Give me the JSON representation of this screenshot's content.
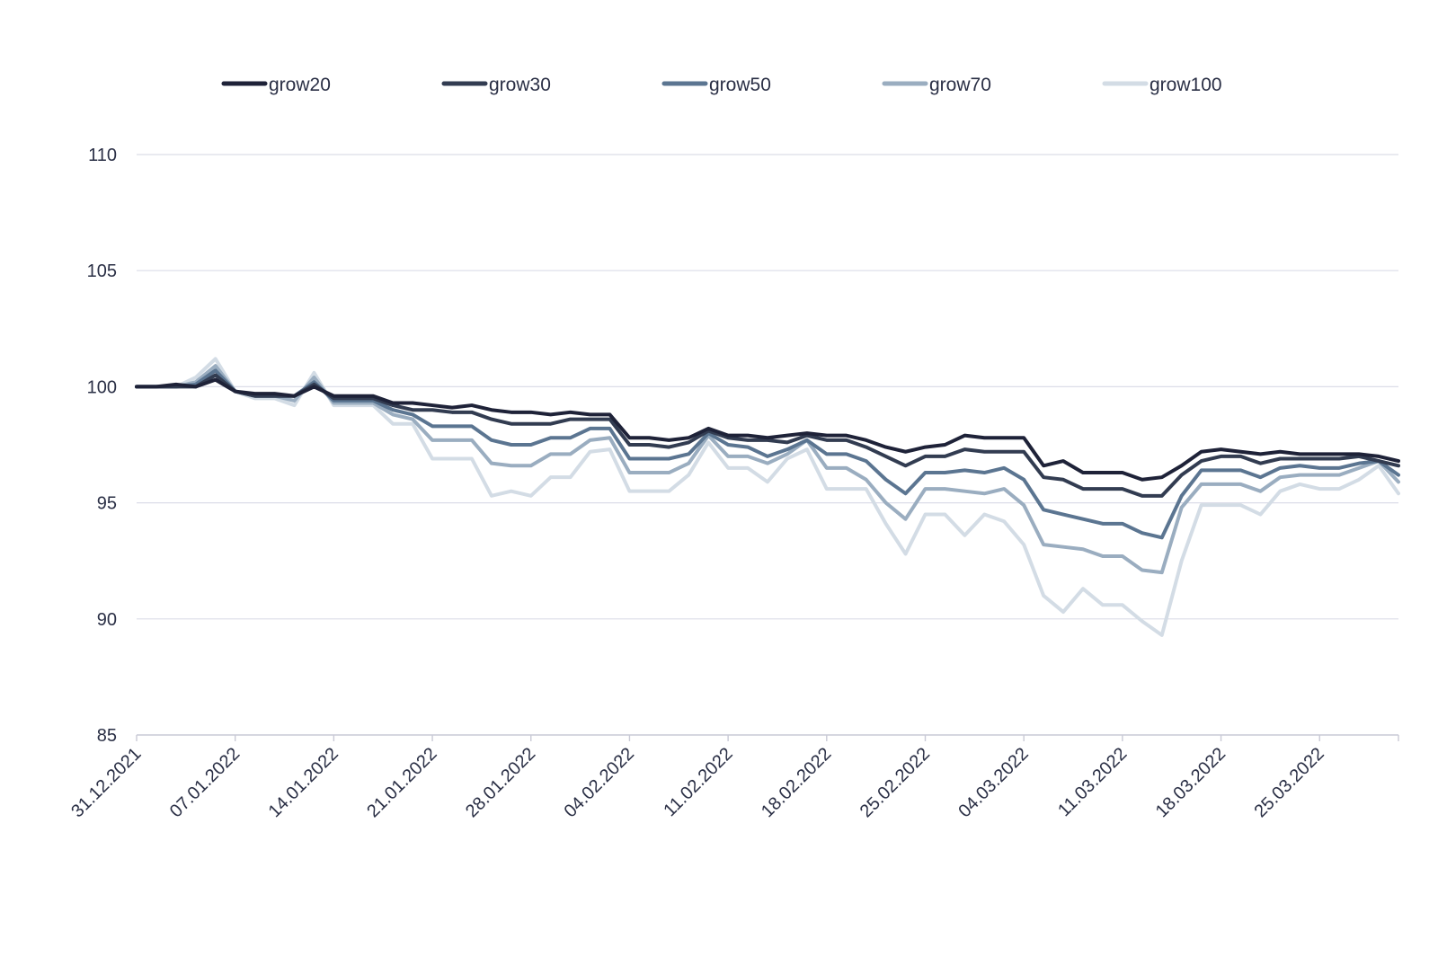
{
  "chart_data": {
    "type": "line",
    "title": "",
    "xlabel": "",
    "ylabel": "",
    "ylim": [
      85,
      110
    ],
    "yticks": [
      85,
      90,
      95,
      100,
      105,
      110
    ],
    "grid": true,
    "legend_position": "top",
    "x_tick_labels": [
      "31.12.2021",
      "07.01.2022",
      "14.01.2022",
      "21.01.2022",
      "28.01.2022",
      "04.02.2022",
      "11.02.2022",
      "18.02.2022",
      "25.02.2022",
      "04.03.2022",
      "11.03.2022",
      "18.03.2022",
      "25.03.2022"
    ],
    "x": [
      "31.12.2021",
      "03.01.2022",
      "04.01.2022",
      "05.01.2022",
      "06.01.2022",
      "07.01.2022",
      "10.01.2022",
      "11.01.2022",
      "12.01.2022",
      "13.01.2022",
      "14.01.2022",
      "17.01.2022",
      "18.01.2022",
      "19.01.2022",
      "20.01.2022",
      "21.01.2022",
      "24.01.2022",
      "25.01.2022",
      "26.01.2022",
      "27.01.2022",
      "28.01.2022",
      "31.01.2022",
      "01.02.2022",
      "02.02.2022",
      "03.02.2022",
      "04.02.2022",
      "07.02.2022",
      "08.02.2022",
      "09.02.2022",
      "10.02.2022",
      "11.02.2022",
      "14.02.2022",
      "15.02.2022",
      "16.02.2022",
      "17.02.2022",
      "18.02.2022",
      "21.02.2022",
      "22.02.2022",
      "23.02.2022",
      "24.02.2022",
      "25.02.2022",
      "28.02.2022",
      "01.03.2022",
      "02.03.2022",
      "03.03.2022",
      "04.03.2022",
      "07.03.2022",
      "08.03.2022",
      "09.03.2022",
      "10.03.2022",
      "11.03.2022",
      "14.03.2022",
      "15.03.2022",
      "16.03.2022",
      "17.03.2022",
      "18.03.2022",
      "21.03.2022",
      "22.03.2022",
      "23.03.2022",
      "24.03.2022",
      "25.03.2022",
      "28.03.2022",
      "29.03.2022",
      "30.03.2022",
      "31.03.2022"
    ],
    "series": [
      {
        "name": "grow20",
        "color": "#1e2238",
        "values": [
          100.0,
          100.0,
          100.1,
          100.0,
          100.3,
          99.8,
          99.7,
          99.7,
          99.6,
          100.0,
          99.6,
          99.6,
          99.6,
          99.3,
          99.3,
          99.2,
          99.1,
          99.2,
          99.0,
          98.9,
          98.9,
          98.8,
          98.9,
          98.8,
          98.8,
          97.8,
          97.8,
          97.7,
          97.8,
          98.2,
          97.9,
          97.9,
          97.8,
          97.9,
          98.0,
          97.9,
          97.9,
          97.7,
          97.4,
          97.2,
          97.4,
          97.5,
          97.9,
          97.8,
          97.8,
          97.8,
          96.6,
          96.8,
          96.3,
          96.3,
          96.3,
          96.0,
          96.1,
          96.6,
          97.2,
          97.3,
          97.2,
          97.1,
          97.2,
          97.1,
          97.1,
          97.1,
          97.1,
          97.0,
          96.8
        ]
      },
      {
        "name": "grow30",
        "color": "#323c51",
        "values": [
          100.0,
          100.0,
          100.0,
          100.0,
          100.5,
          99.8,
          99.6,
          99.6,
          99.6,
          100.1,
          99.5,
          99.5,
          99.5,
          99.2,
          99.0,
          99.0,
          98.9,
          98.9,
          98.6,
          98.4,
          98.4,
          98.4,
          98.6,
          98.6,
          98.6,
          97.5,
          97.5,
          97.4,
          97.6,
          98.1,
          97.8,
          97.7,
          97.7,
          97.6,
          97.9,
          97.7,
          97.7,
          97.4,
          97.0,
          96.6,
          97.0,
          97.0,
          97.3,
          97.2,
          97.2,
          97.2,
          96.1,
          96.0,
          95.6,
          95.6,
          95.6,
          95.3,
          95.3,
          96.2,
          96.8,
          97.0,
          97.0,
          96.7,
          96.9,
          96.9,
          96.9,
          96.9,
          97.0,
          96.8,
          96.6
        ]
      },
      {
        "name": "grow50",
        "color": "#5b7591",
        "values": [
          100.0,
          100.0,
          100.0,
          100.1,
          100.7,
          99.8,
          99.6,
          99.6,
          99.6,
          100.2,
          99.4,
          99.4,
          99.4,
          99.0,
          98.8,
          98.3,
          98.3,
          98.3,
          97.7,
          97.5,
          97.5,
          97.8,
          97.8,
          98.2,
          98.2,
          96.9,
          96.9,
          96.9,
          97.1,
          98.0,
          97.5,
          97.4,
          97.0,
          97.3,
          97.7,
          97.1,
          97.1,
          96.8,
          96.0,
          95.4,
          96.3,
          96.3,
          96.4,
          96.3,
          96.5,
          96.0,
          94.7,
          94.5,
          94.3,
          94.1,
          94.1,
          93.7,
          93.5,
          95.3,
          96.4,
          96.4,
          96.4,
          96.1,
          96.5,
          96.6,
          96.5,
          96.5,
          96.7,
          96.8,
          96.2
        ]
      },
      {
        "name": "grow70",
        "color": "#9aadc0",
        "values": [
          100.0,
          100.0,
          100.0,
          100.2,
          100.9,
          99.8,
          99.6,
          99.6,
          99.4,
          100.4,
          99.3,
          99.3,
          99.3,
          98.8,
          98.6,
          97.7,
          97.7,
          97.7,
          96.7,
          96.6,
          96.6,
          97.1,
          97.1,
          97.7,
          97.8,
          96.3,
          96.3,
          96.3,
          96.7,
          97.9,
          97.0,
          97.0,
          96.7,
          97.1,
          97.7,
          96.5,
          96.5,
          96.0,
          95.0,
          94.3,
          95.6,
          95.6,
          95.5,
          95.4,
          95.6,
          94.9,
          93.2,
          93.1,
          93.0,
          92.7,
          92.7,
          92.1,
          92.0,
          94.8,
          95.8,
          95.8,
          95.8,
          95.5,
          96.1,
          96.2,
          96.2,
          96.2,
          96.5,
          96.8,
          95.9
        ]
      },
      {
        "name": "grow100",
        "color": "#d3dce5",
        "values": [
          100.0,
          100.0,
          100.0,
          100.4,
          101.2,
          99.8,
          99.5,
          99.5,
          99.2,
          100.6,
          99.2,
          99.2,
          99.2,
          98.4,
          98.4,
          96.9,
          96.9,
          96.9,
          95.3,
          95.5,
          95.3,
          96.1,
          96.1,
          97.2,
          97.3,
          95.5,
          95.5,
          95.5,
          96.2,
          97.6,
          96.5,
          96.5,
          95.9,
          96.9,
          97.3,
          95.6,
          95.6,
          95.6,
          94.1,
          92.8,
          94.5,
          94.5,
          93.6,
          94.5,
          94.2,
          93.2,
          91.0,
          90.3,
          91.3,
          90.6,
          90.6,
          89.9,
          89.3,
          92.5,
          94.9,
          94.9,
          94.9,
          94.5,
          95.5,
          95.8,
          95.6,
          95.6,
          96.0,
          96.6,
          95.4
        ]
      }
    ]
  }
}
